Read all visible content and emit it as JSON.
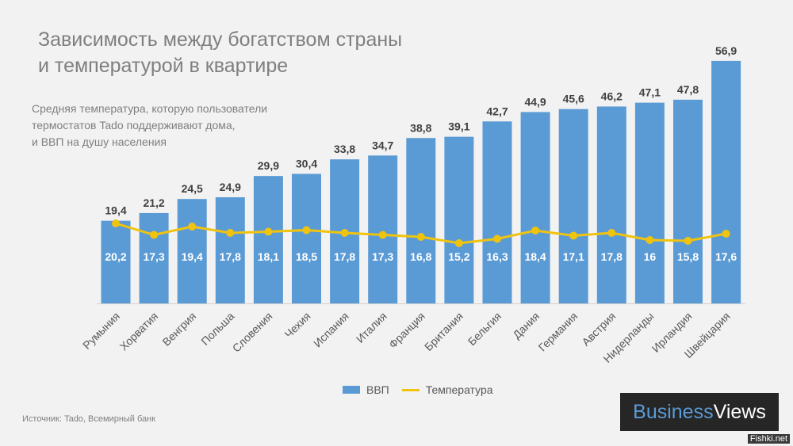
{
  "title_line1": "Зависимость между богатством страны",
  "title_line2": "и температурой  в квартире",
  "subtitle_line1": "Средняя температура,  которую пользователи",
  "subtitle_line2": "термостатов Tado поддерживают дома,",
  "subtitle_line3": "и ВВП  на душу населения",
  "source": "Источник: Tado, Всемирный банк",
  "logo_part1": "Business",
  "logo_part2": "Views",
  "watermark": "Fishki.net",
  "colors": {
    "bar": "#5b9bd5",
    "line": "#f0c30f",
    "background": "#f2f2f2"
  },
  "chart_data": {
    "type": "bar",
    "categories": [
      "Румыния",
      "Хорватия",
      "Венгрия",
      "Польша",
      "Словения",
      "Чехия",
      "Испания",
      "Италия",
      "Франция",
      "Британия",
      "Бельгия",
      "Дания",
      "Германия",
      "Австрия",
      "Нидерланды",
      "Ирландия",
      "Швейцария"
    ],
    "series": [
      {
        "name": "ВВП",
        "type": "bar",
        "values": [
          19.4,
          21.2,
          24.5,
          24.9,
          29.9,
          30.4,
          33.8,
          34.7,
          38.8,
          39.1,
          42.7,
          44.9,
          45.6,
          46.2,
          47.1,
          47.8,
          56.9
        ],
        "labels": [
          "19,4",
          "21,2",
          "24,5",
          "24,9",
          "29,9",
          "30,4",
          "33,8",
          "34,7",
          "38,8",
          "39,1",
          "42,7",
          "44,9",
          "45,6",
          "46,2",
          "47,1",
          "47,8",
          "56,9"
        ]
      },
      {
        "name": "Температура",
        "type": "line",
        "values": [
          20.2,
          17.3,
          19.4,
          17.8,
          18.1,
          18.5,
          17.8,
          17.3,
          16.8,
          15.2,
          16.3,
          18.4,
          17.1,
          17.8,
          16,
          15.8,
          17.6
        ],
        "labels": [
          "20,2",
          "17,3",
          "19,4",
          "17,8",
          "18,1",
          "18,5",
          "17,8",
          "17,3",
          "16,8",
          "15,2",
          "16,3",
          "18,4",
          "17,1",
          "17,8",
          "16",
          "15,8",
          "17,6"
        ]
      }
    ],
    "legend": "bottom",
    "grid": false
  }
}
